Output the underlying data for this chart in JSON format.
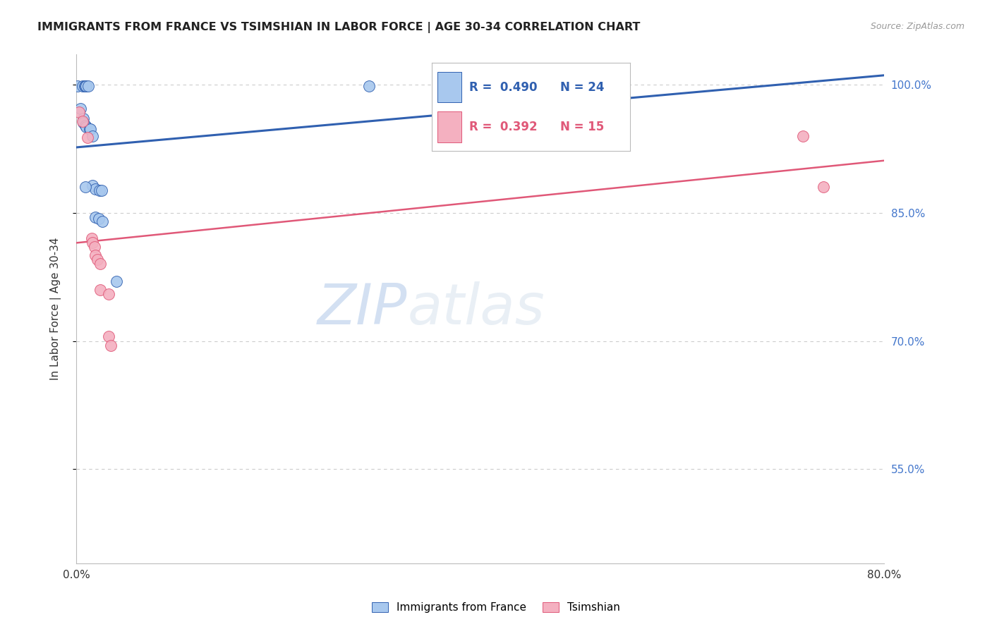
{
  "title": "IMMIGRANTS FROM FRANCE VS TSIMSHIAN IN LABOR FORCE | AGE 30-34 CORRELATION CHART",
  "source": "Source: ZipAtlas.com",
  "ylabel": "In Labor Force | Age 30-34",
  "xlim": [
    0.0,
    0.8
  ],
  "ylim": [
    0.44,
    1.035
  ],
  "yticks": [
    0.55,
    0.7,
    0.85,
    1.0
  ],
  "ytick_labels": [
    "55.0%",
    "70.0%",
    "85.0%",
    "100.0%"
  ],
  "xticks": [
    0.0,
    0.1,
    0.2,
    0.3,
    0.4,
    0.5,
    0.6,
    0.7,
    0.8
  ],
  "xtick_labels": [
    "0.0%",
    "",
    "",
    "",
    "",
    "",
    "",
    "",
    "80.0%"
  ],
  "blue_scatter": [
    [
      0.001,
      0.998
    ],
    [
      0.006,
      0.998
    ],
    [
      0.008,
      0.998
    ],
    [
      0.009,
      0.998
    ],
    [
      0.01,
      0.998
    ],
    [
      0.012,
      0.998
    ],
    [
      0.004,
      0.972
    ],
    [
      0.007,
      0.96
    ],
    [
      0.007,
      0.955
    ],
    [
      0.009,
      0.952
    ],
    [
      0.01,
      0.95
    ],
    [
      0.013,
      0.948
    ],
    [
      0.014,
      0.948
    ],
    [
      0.016,
      0.94
    ],
    [
      0.016,
      0.882
    ],
    [
      0.019,
      0.878
    ],
    [
      0.023,
      0.876
    ],
    [
      0.025,
      0.876
    ],
    [
      0.009,
      0.88
    ],
    [
      0.019,
      0.845
    ],
    [
      0.022,
      0.843
    ],
    [
      0.026,
      0.84
    ],
    [
      0.04,
      0.77
    ],
    [
      0.29,
      0.998
    ]
  ],
  "pink_scatter": [
    [
      0.003,
      0.968
    ],
    [
      0.006,
      0.957
    ],
    [
      0.011,
      0.938
    ],
    [
      0.015,
      0.82
    ],
    [
      0.016,
      0.815
    ],
    [
      0.018,
      0.81
    ],
    [
      0.019,
      0.8
    ],
    [
      0.021,
      0.795
    ],
    [
      0.024,
      0.79
    ],
    [
      0.024,
      0.76
    ],
    [
      0.032,
      0.755
    ],
    [
      0.032,
      0.705
    ],
    [
      0.034,
      0.695
    ],
    [
      0.72,
      0.94
    ],
    [
      0.74,
      0.88
    ]
  ],
  "blue_R": 0.49,
  "blue_N": 24,
  "pink_R": 0.392,
  "pink_N": 15,
  "blue_color": "#A8C8EE",
  "pink_color": "#F4B0C0",
  "blue_line_color": "#3060B0",
  "pink_line_color": "#E05878",
  "watermark_zip": "ZIP",
  "watermark_atlas": "atlas",
  "background_color": "#FFFFFF",
  "grid_color": "#CCCCCC",
  "title_color": "#222222",
  "axis_label_color": "#333333",
  "right_tick_color": "#4477CC",
  "source_color": "#999999",
  "legend_box_color": "#EEEEEE"
}
